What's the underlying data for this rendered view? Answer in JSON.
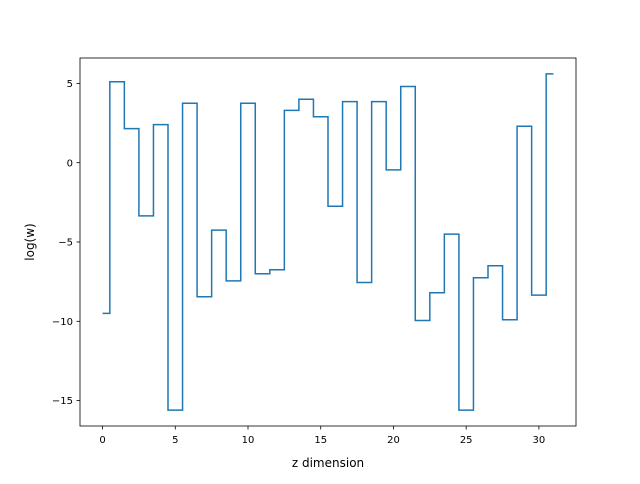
{
  "chart_data": {
    "type": "line",
    "drawstyle": "steps-mid",
    "xlabel": "z dimension",
    "ylabel": "log(w)",
    "xlim": [
      -1.55,
      32.55
    ],
    "ylim": [
      -16.6,
      6.6
    ],
    "xticks": [
      0,
      5,
      10,
      15,
      20,
      25,
      30
    ],
    "yticks": [
      -15,
      -10,
      -5,
      0,
      5
    ],
    "grid": false,
    "line_color": "#1f77b4",
    "x": [
      0,
      1,
      2,
      3,
      4,
      5,
      6,
      7,
      8,
      9,
      10,
      11,
      12,
      13,
      14,
      15,
      16,
      17,
      18,
      19,
      20,
      21,
      22,
      23,
      24,
      25,
      26,
      27,
      28,
      29,
      30,
      31
    ],
    "y": [
      -9.5,
      5.1,
      2.15,
      -3.35,
      2.4,
      -15.6,
      3.75,
      -8.45,
      -4.25,
      -7.45,
      3.75,
      -7.0,
      -6.75,
      3.3,
      4.0,
      2.9,
      -2.75,
      3.85,
      -7.55,
      3.85,
      -0.45,
      4.8,
      -9.95,
      -8.2,
      -4.5,
      -15.6,
      -7.25,
      -6.5,
      -9.9,
      2.3,
      -8.35,
      5.6
    ]
  }
}
